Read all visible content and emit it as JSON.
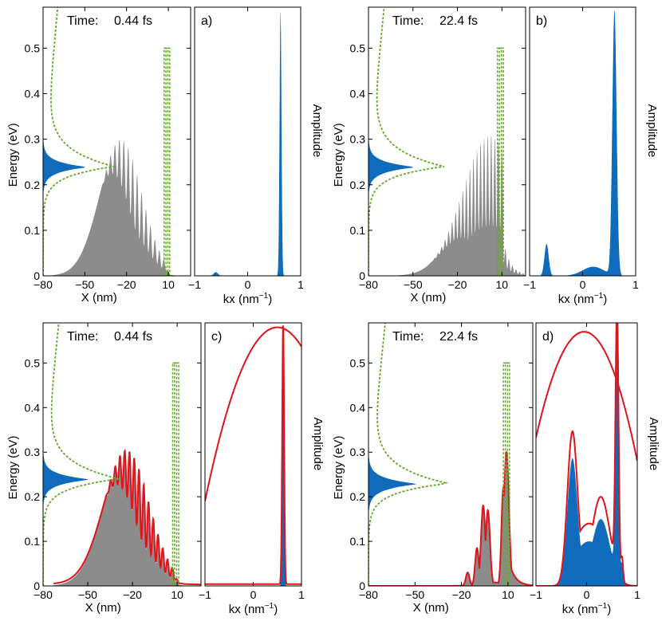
{
  "chart_data": {
    "type": "area",
    "description_units": {
      "energy": "eV",
      "x": "nm",
      "kx": "nm^-1"
    },
    "colors": {
      "gray_fill": "#8c8c8c",
      "blue_fill": "#0f6cbd",
      "red_line": "#e0141b",
      "green_dash": "#66a82a",
      "axis": "#000000"
    },
    "panels": [
      {
        "id": "a",
        "time_label": "Time:",
        "time_value": "0.44 fs",
        "letter": "a)",
        "left": {
          "xlabel": "X (nm)",
          "ylabel": "Energy (eV)",
          "xlim": [
            -80,
            26
          ],
          "ylim": [
            0,
            0.59
          ],
          "xticks": [
            -80,
            -50,
            -20,
            10
          ],
          "xtick_labels": [
            "−80",
            "−50",
            "−20",
            "10"
          ],
          "yticks": [
            0,
            0.1,
            0.2,
            0.3,
            0.4,
            0.5
          ],
          "ytick_labels": [
            "0",
            "0.1",
            "0.2",
            "0.3",
            "0.4",
            "0.5"
          ]
        },
        "right": {
          "xlabel_main": "kx (nm",
          "xlabel_sup": "−1",
          "xlabel_end": ")",
          "ylabel": "Amplitude",
          "xlim": [
            -1,
            1
          ],
          "xticks": [
            -1,
            0,
            1
          ],
          "xtick_labels": [
            "−1",
            "0",
            "1"
          ]
        },
        "packet": {
          "center": -24,
          "sigma": 15,
          "start": -73,
          "end": 15,
          "peak": 0.3,
          "osc_start": -38,
          "osc_period": 3.2,
          "osc_depth": 0.6
        },
        "barrier": {
          "x1": 7,
          "x2": 11,
          "height": 0.5
        },
        "energy_dist": {
          "center": 0.24,
          "width": 0.012,
          "amplitude": 36
        },
        "guide": {
          "center": 0.24,
          "width": 0.022,
          "amplitude": 51
        },
        "k_peaks": [
          {
            "k": 0.62,
            "height": 0.58,
            "width": 0.018
          },
          {
            "k": -0.6,
            "height": 0.008,
            "width": 0.04
          }
        ],
        "show_red": false
      },
      {
        "id": "b",
        "time_label": "Time:",
        "time_value": "22.4 fs",
        "letter": "b)",
        "left": {
          "xlabel": "X (nm)",
          "ylabel": "Energy (eV)",
          "xlim": [
            -80,
            26
          ],
          "ylim": [
            0,
            0.59
          ],
          "xticks": [
            -80,
            -50,
            -20,
            10
          ],
          "xtick_labels": [
            "−80",
            "−50",
            "−20",
            "10"
          ],
          "yticks": [
            0,
            0.1,
            0.2,
            0.3,
            0.4,
            0.5
          ],
          "ytick_labels": [
            "0",
            "0.1",
            "0.2",
            "0.3",
            "0.4",
            "0.5"
          ]
        },
        "right": {
          "xlabel_main": "kx (nm",
          "xlabel_sup": "−1",
          "xlabel_end": ")",
          "ylabel": "Amplitude",
          "xlim": [
            -1,
            1
          ],
          "xticks": [
            -1,
            0,
            1
          ],
          "xtick_labels": [
            "−1",
            "0",
            "1"
          ]
        },
        "packet": {
          "center": 2,
          "sigma": 11,
          "start": -60,
          "end": 26,
          "peak": 0.31,
          "osc_start": -38,
          "osc_period": 2.4,
          "osc_depth": 0.65
        },
        "barrier": {
          "x1": 7,
          "x2": 11,
          "height": 0.5
        },
        "energy_dist": {
          "center": 0.24,
          "width": 0.012,
          "amplitude": 36
        },
        "guide": {
          "center": 0.24,
          "width": 0.022,
          "amplitude": 51
        },
        "k_peaks": [
          {
            "k": 0.6,
            "height": 0.58,
            "width": 0.04
          },
          {
            "k": -0.68,
            "height": 0.07,
            "width": 0.04
          },
          {
            "k": 0.2,
            "height": 0.02,
            "width": 0.2
          }
        ],
        "show_red": false
      },
      {
        "id": "c",
        "time_label": "Time:",
        "time_value": "0.44 fs",
        "letter": "c)",
        "left": {
          "xlabel": "X (nm)",
          "ylabel": "Energy (eV)",
          "xlim": [
            -80,
            26
          ],
          "ylim": [
            0,
            0.59
          ],
          "xticks": [
            -80,
            -50,
            -20,
            10
          ],
          "xtick_labels": [
            "−80",
            "−50",
            "−20",
            "10"
          ],
          "yticks": [
            0,
            0.1,
            0.2,
            0.3,
            0.4,
            0.5
          ],
          "ytick_labels": [
            "0",
            "0.1",
            "0.2",
            "0.3",
            "0.4",
            "0.5"
          ]
        },
        "right": {
          "xlabel_main": "kx (nm",
          "xlabel_sup": "−1",
          "xlabel_end": ")",
          "ylabel": "Amplitude",
          "xlim": [
            -1,
            1
          ],
          "xticks": [
            -1,
            0,
            1
          ],
          "xtick_labels": [
            "−1",
            "0",
            "1"
          ]
        },
        "packet": {
          "center": -24,
          "sigma": 15,
          "start": -73,
          "end": 15,
          "peak": 0.3,
          "osc_start": -38,
          "osc_period": 3.2,
          "osc_depth": 0.6
        },
        "barrier": {
          "x1": 7,
          "x2": 11,
          "height": 0.5
        },
        "energy_dist": {
          "center": 0.24,
          "width": 0.012,
          "amplitude": 36
        },
        "guide": {
          "center": 0.24,
          "width": 0.022,
          "amplitude": 51
        },
        "k_peaks": [
          {
            "k": 0.62,
            "height": 0.58,
            "width": 0.018
          }
        ],
        "show_red": true,
        "red_arc": {
          "center": 0.5,
          "peak": 0.58,
          "value_at_minus1": 0.19
        }
      },
      {
        "id": "d",
        "time_label": "Time:",
        "time_value": "22.4 fs",
        "letter": "d)",
        "left": {
          "xlabel": "X (nm)",
          "ylabel": "Energy (eV)",
          "xlim": [
            -80,
            26
          ],
          "ylim": [
            0,
            0.59
          ],
          "xticks": [
            -80,
            -50,
            -20,
            10
          ],
          "xtick_labels": [
            "−80",
            "−50",
            "−20",
            "10"
          ],
          "yticks": [
            0,
            0.1,
            0.2,
            0.3,
            0.4,
            0.5
          ],
          "ytick_labels": [
            "0",
            "0.1",
            "0.2",
            "0.3",
            "0.4",
            "0.5"
          ]
        },
        "right": {
          "xlabel_main": "kx (nm",
          "xlabel_sup": "−1",
          "xlabel_end": ")",
          "ylabel": "Amplitude",
          "xlim": [
            -1,
            1
          ],
          "xticks": [
            -1,
            0,
            1
          ],
          "xtick_labels": [
            "−1",
            "0",
            "1"
          ]
        },
        "spikes": [
          {
            "x": -10,
            "h": 0.085,
            "w": 1.2
          },
          {
            "x": -6,
            "h": 0.18,
            "w": 1.4
          },
          {
            "x": -3,
            "h": 0.17,
            "w": 1.4
          },
          {
            "x": 9,
            "h": 0.3,
            "w": 1.6
          },
          {
            "x": 7,
            "h": 0.22,
            "w": 1.2
          },
          {
            "x": -16,
            "h": 0.03,
            "w": 1.2
          }
        ],
        "barrier": {
          "x1": 7,
          "x2": 11,
          "height": 0.5
        },
        "energy_dist": {
          "center": 0.23,
          "width": 0.013,
          "amplitude": 36
        },
        "guide": {
          "center": 0.23,
          "width": 0.022,
          "amplitude": 51
        },
        "k_blue": [
          {
            "k": -0.28,
            "h": 0.285,
            "w": 0.1
          },
          {
            "k": 0.28,
            "h": 0.15,
            "w": 0.18
          },
          {
            "k": 0.6,
            "h": 0.58,
            "w": 0.03
          },
          {
            "k": 0.7,
            "h": 0.04,
            "w": 0.02
          }
        ],
        "k_red": [
          {
            "k": -0.28,
            "h": 0.345,
            "w": 0.1
          },
          {
            "k": 0.28,
            "h": 0.2,
            "w": 0.18
          },
          {
            "k": 0.6,
            "h": 0.585,
            "w": 0.03
          },
          {
            "k": 0.7,
            "h": 0.05,
            "w": 0.02
          }
        ],
        "show_red": true,
        "red_arc": {
          "center": -0.05,
          "peak": 0.57,
          "value_at_plus1": 0.28
        }
      }
    ]
  }
}
